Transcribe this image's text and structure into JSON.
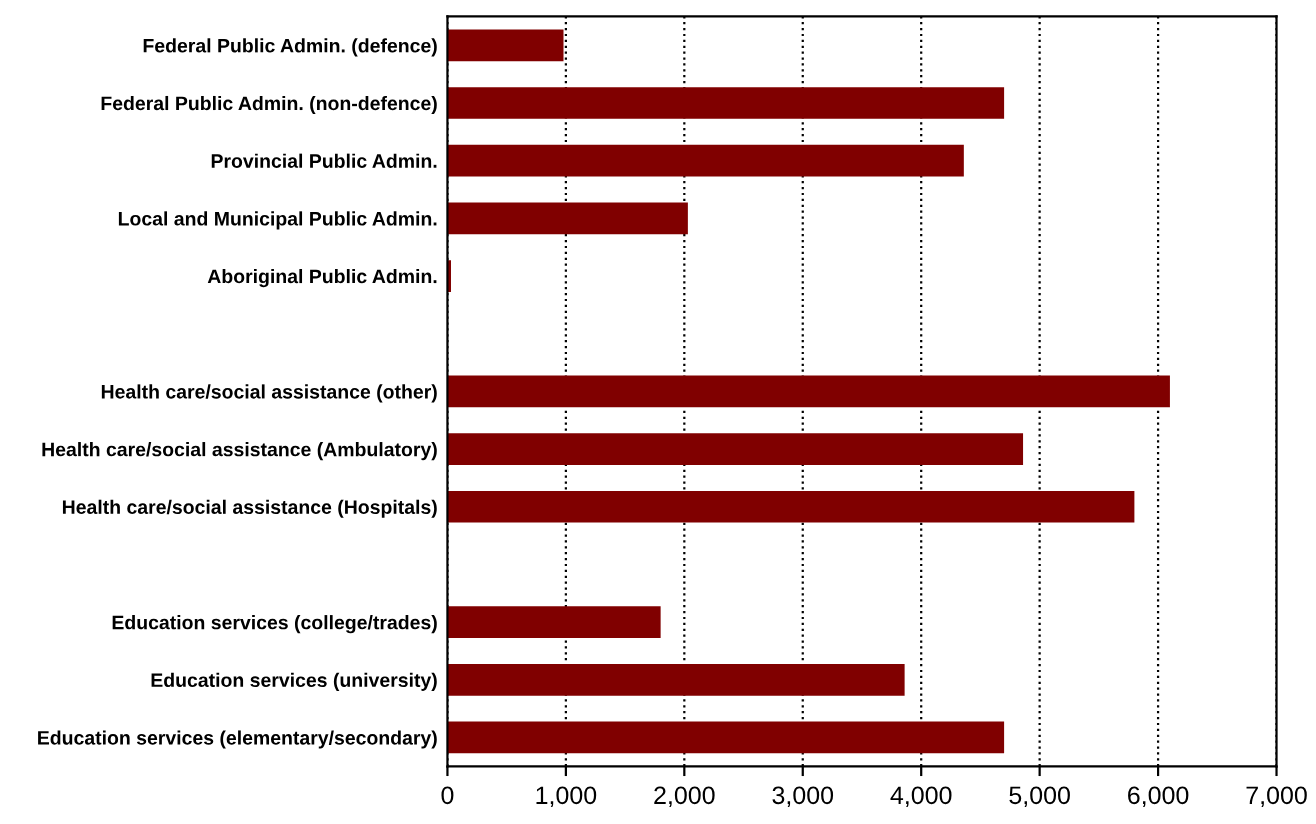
{
  "chart_data": {
    "type": "bar",
    "orientation": "horizontal",
    "categories": [
      "Federal Public Admin. (defence)",
      "Federal Public Admin. (non-defence)",
      "Provincial Public Admin.",
      "Local and Municipal Public Admin.",
      "Aboriginal Public Admin.",
      null,
      "Health care/social assistance (other)",
      "Health care/social assistance (Ambulatory)",
      "Health care/social assistance (Hospitals)",
      null,
      "Education services (college/trades)",
      "Education services (university)",
      "Education services (elementary/secondary)"
    ],
    "values": [
      980,
      4700,
      4360,
      2030,
      30,
      null,
      6100,
      4860,
      5800,
      null,
      1800,
      3860,
      4700
    ],
    "color": "#800000",
    "xlim": [
      0,
      7000
    ],
    "xticks": [
      0,
      {
        "value": 1000,
        "label": "1,000"
      },
      {
        "value": 2000,
        "label": "2,000"
      },
      {
        "value": 3000,
        "label": "3,000"
      },
      {
        "value": 4000,
        "label": "4,000"
      },
      {
        "value": 5000,
        "label": "5,000"
      },
      {
        "value": 6000,
        "label": "6,000"
      },
      {
        "value": 7000,
        "label": "7,000"
      }
    ],
    "grid": "x"
  }
}
